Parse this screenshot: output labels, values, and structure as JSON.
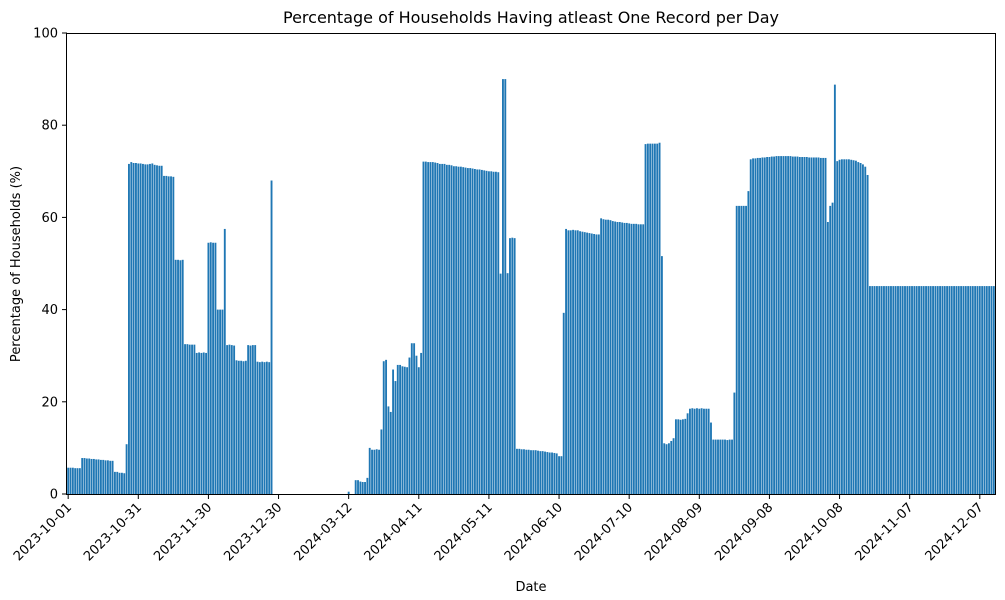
{
  "chart_data": {
    "type": "bar",
    "title": "Percentage of Households Having atleast One Record per Day",
    "xlabel": "Date",
    "ylabel": "Percentage of Households (%)",
    "ylim": [
      0,
      100
    ],
    "yticks": [
      0,
      20,
      40,
      60,
      80,
      100
    ],
    "bar_color": "#1f77b4",
    "start_date": "2023-10-01",
    "num_days": 437,
    "xtick_labels": [
      "2023-10-01",
      "2023-10-31",
      "2023-11-30",
      "2023-12-30",
      "2024-03-12",
      "2024-04-11",
      "2024-05-11",
      "2024-06-10",
      "2024-07-10",
      "2024-08-09",
      "2024-09-08",
      "2024-10-08",
      "2024-11-07",
      "2024-12-07"
    ],
    "xtick_positions": [
      0,
      30,
      60,
      90,
      120,
      150,
      180,
      210,
      240,
      270,
      300,
      330,
      360,
      390
    ],
    "values": [
      5.7,
      5.7,
      5.7,
      5.6,
      5.6,
      5.6,
      7.8,
      7.8,
      7.7,
      7.7,
      7.6,
      7.6,
      7.5,
      7.5,
      7.4,
      7.4,
      7.3,
      7.3,
      7.2,
      7.2,
      4.8,
      4.8,
      4.6,
      4.6,
      4.5,
      10.8,
      71.6,
      72.0,
      71.8,
      71.8,
      71.7,
      71.7,
      71.6,
      71.5,
      71.5,
      71.6,
      71.7,
      71.4,
      71.3,
      71.2,
      71.2,
      69.0,
      69.0,
      68.9,
      68.9,
      68.8,
      50.8,
      50.8,
      50.7,
      50.8,
      32.5,
      32.5,
      32.4,
      32.4,
      32.4,
      30.6,
      30.7,
      30.6,
      30.7,
      30.6,
      54.5,
      54.6,
      54.5,
      54.5,
      40.0,
      40.0,
      40.0,
      57.5,
      32.3,
      32.4,
      32.3,
      32.2,
      29.0,
      28.9,
      28.9,
      28.8,
      28.9,
      32.3,
      32.2,
      32.3,
      32.3,
      28.7,
      28.6,
      28.7,
      28.6,
      28.7,
      28.6,
      68.0,
      0,
      0,
      0,
      0,
      0,
      0,
      0,
      0,
      0,
      0,
      0,
      0,
      0,
      0,
      0,
      0,
      0,
      0,
      0,
      0,
      0,
      0,
      0,
      0,
      0,
      0,
      0,
      0,
      0,
      0,
      0,
      0,
      0.5,
      0,
      0,
      3.0,
      3.0,
      2.7,
      2.6,
      2.6,
      3.5,
      10.0,
      9.6,
      9.6,
      9.7,
      9.6,
      14.0,
      28.8,
      29.1,
      19.0,
      17.8,
      27.0,
      24.5,
      28.0,
      28.0,
      27.7,
      27.6,
      27.5,
      29.6,
      32.7,
      32.7,
      30.0,
      27.5,
      30.6,
      72.1,
      72.1,
      72.0,
      72.0,
      72.0,
      71.9,
      71.8,
      71.6,
      71.6,
      71.6,
      71.4,
      71.4,
      71.3,
      71.1,
      71.1,
      71.0,
      71.0,
      70.9,
      70.8,
      70.7,
      70.7,
      70.6,
      70.5,
      70.4,
      70.4,
      70.3,
      70.2,
      70.1,
      70.0,
      70.0,
      69.9,
      69.9,
      69.8,
      47.8,
      90.0,
      90.0,
      47.9,
      55.5,
      55.6,
      55.5,
      9.8,
      9.8,
      9.7,
      9.7,
      9.6,
      9.6,
      9.5,
      9.5,
      9.5,
      9.4,
      9.3,
      9.3,
      9.2,
      9.1,
      9.0,
      9.0,
      8.9,
      8.8,
      8.2,
      8.2,
      39.3,
      57.5,
      57.2,
      57.2,
      57.3,
      57.2,
      57.2,
      57.0,
      56.9,
      56.8,
      56.7,
      56.6,
      56.5,
      56.4,
      56.3,
      56.3,
      59.8,
      59.6,
      59.5,
      59.5,
      59.4,
      59.2,
      59.1,
      59.0,
      59.0,
      58.9,
      58.8,
      58.8,
      58.7,
      58.6,
      58.6,
      58.6,
      58.5,
      58.5,
      58.5,
      75.9,
      76.0,
      76.0,
      76.0,
      76.0,
      76.0,
      76.2,
      51.6,
      11.0,
      10.8,
      11.0,
      11.5,
      12.1,
      16.2,
      16.2,
      16.1,
      16.2,
      16.3,
      17.5,
      18.5,
      18.6,
      18.5,
      18.6,
      18.5,
      18.6,
      18.5,
      18.5,
      18.5,
      15.5,
      11.8,
      11.8,
      11.8,
      11.8,
      11.8,
      11.8,
      11.7,
      11.8,
      11.8,
      22.0,
      62.5,
      62.5,
      62.5,
      62.5,
      62.5,
      65.7,
      72.6,
      72.8,
      72.8,
      72.9,
      72.9,
      73.0,
      73.0,
      73.1,
      73.1,
      73.2,
      73.2,
      73.3,
      73.3,
      73.3,
      73.3,
      73.3,
      73.3,
      73.3,
      73.2,
      73.2,
      73.2,
      73.1,
      73.1,
      73.1,
      73.1,
      73.0,
      73.0,
      73.0,
      73.0,
      73.0,
      72.9,
      72.9,
      72.9,
      59.0,
      62.5,
      63.2,
      88.8,
      72.2,
      72.5,
      72.6,
      72.6,
      72.6,
      72.6,
      72.5,
      72.4,
      72.3,
      72.0,
      71.8,
      71.5,
      71.0,
      69.2,
      45.1,
      45.1,
      45.1,
      45.1,
      45.1,
      45.1,
      45.1,
      45.1,
      45.1,
      45.1,
      45.1,
      45.1,
      45.1,
      45.1,
      45.1,
      45.1,
      45.1,
      45.1,
      45.1,
      45.1,
      45.1,
      45.1,
      45.1,
      45.1,
      45.1,
      45.1,
      45.1,
      45.1,
      45.1,
      45.1,
      45.1,
      45.1,
      45.1,
      45.1,
      45.1,
      45.1,
      45.1,
      45.1,
      45.1,
      45.1,
      45.1,
      45.1,
      45.1,
      45.1,
      45.1,
      45.1,
      45.1,
      45.1,
      45.1,
      45.1,
      45.1,
      45.1,
      45.1,
      45.1
    ]
  }
}
